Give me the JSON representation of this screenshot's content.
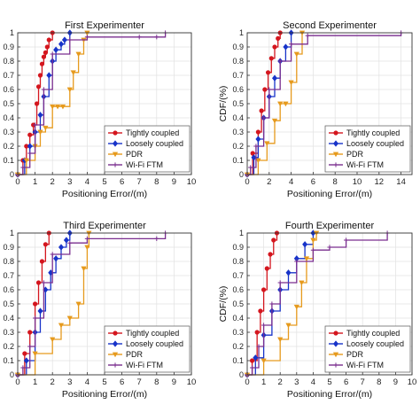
{
  "figure": {
    "colors": {
      "tightly": "#d4161e",
      "loosely": "#1733c9",
      "pdr": "#e69a1d",
      "wifi": "#7a2e8f",
      "axis": "#333333",
      "grid": "#e2e2e2"
    }
  },
  "chart_data": [
    {
      "type": "line",
      "title": "First Experimenter",
      "xlabel": "Positioning Error/(m)",
      "ylabel": "",
      "xlim": [
        0,
        10
      ],
      "ylim": [
        0,
        1
      ],
      "xticks": [
        "0",
        "1",
        "2",
        "3",
        "4",
        "5",
        "6",
        "7",
        "8",
        "9",
        "10"
      ],
      "yticks": [
        "0",
        "0.1",
        "0.2",
        "0.3",
        "0.4",
        "0.5",
        "0.6",
        "0.7",
        "0.8",
        "0.9",
        "1"
      ],
      "grid": true,
      "legend_position": "lower-right",
      "legend": [
        "Tightly coupled",
        "Loosely coupled",
        "PDR",
        "Wi-Fi FTM"
      ],
      "series": [
        {
          "name": "Tightly coupled",
          "color_key": "tightly",
          "marker": "circle",
          "x": [
            0,
            0.3,
            0.5,
            0.7,
            0.9,
            1.1,
            1.2,
            1.3,
            1.4,
            1.5,
            1.6,
            1.7,
            1.8,
            2.0
          ],
          "y": [
            0,
            0.1,
            0.2,
            0.28,
            0.35,
            0.5,
            0.62,
            0.7,
            0.78,
            0.83,
            0.86,
            0.9,
            0.95,
            1.0
          ]
        },
        {
          "name": "Loosely coupled",
          "color_key": "loosely",
          "marker": "diamond",
          "x": [
            0,
            0.4,
            0.7,
            1.0,
            1.3,
            1.5,
            1.8,
            2.0,
            2.2,
            2.5,
            2.7,
            3.0
          ],
          "y": [
            0,
            0.1,
            0.2,
            0.3,
            0.42,
            0.55,
            0.7,
            0.8,
            0.88,
            0.92,
            0.95,
            1.0
          ]
        },
        {
          "name": "PDR",
          "color_key": "pdr",
          "marker": "triangle",
          "x": [
            0,
            0.5,
            1.0,
            1.3,
            1.6,
            2.0,
            2.3,
            2.6,
            3.0,
            3.2,
            3.5,
            3.8,
            4.0
          ],
          "y": [
            0,
            0.1,
            0.2,
            0.3,
            0.33,
            0.48,
            0.48,
            0.48,
            0.6,
            0.72,
            0.85,
            0.95,
            1.0
          ]
        },
        {
          "name": "Wi-Fi FTM",
          "color_key": "wifi",
          "marker": "plus",
          "x": [
            0,
            0.3,
            0.7,
            1.0,
            1.5,
            2.0,
            3.0,
            4.0,
            7.0,
            8.0,
            8.5
          ],
          "y": [
            0,
            0.05,
            0.15,
            0.35,
            0.6,
            0.85,
            0.95,
            0.97,
            0.97,
            0.97,
            1.0
          ]
        }
      ]
    },
    {
      "type": "line",
      "title": "Second Experimenter",
      "xlabel": "Positioning Error/(m)",
      "ylabel": "CDF/(%)",
      "xlim": [
        0,
        15
      ],
      "ylim": [
        0,
        1
      ],
      "xticks": [
        "0",
        "2",
        "4",
        "6",
        "8",
        "10",
        "12",
        "14"
      ],
      "yticks": [
        "0",
        "0.1",
        "0.2",
        "0.3",
        "0.4",
        "0.5",
        "0.6",
        "0.7",
        "0.8",
        "0.9",
        "1"
      ],
      "grid": true,
      "legend_position": "lower-right",
      "legend": [
        "Tightly coupled",
        "Loosely coupled",
        "PDR",
        "Wi-Fi FTM"
      ],
      "series": [
        {
          "name": "Tightly coupled",
          "color_key": "tightly",
          "marker": "circle",
          "x": [
            0,
            0.5,
            1.0,
            1.3,
            1.6,
            1.9,
            2.2,
            2.5,
            2.8,
            3.0
          ],
          "y": [
            0,
            0.15,
            0.3,
            0.45,
            0.6,
            0.72,
            0.82,
            0.9,
            0.96,
            1.0
          ]
        },
        {
          "name": "Loosely coupled",
          "color_key": "loosely",
          "marker": "diamond",
          "x": [
            0,
            0.6,
            1.0,
            1.5,
            2.0,
            2.5,
            3.0,
            3.5,
            4.0
          ],
          "y": [
            0,
            0.12,
            0.25,
            0.4,
            0.55,
            0.68,
            0.8,
            0.9,
            1.0
          ]
        },
        {
          "name": "PDR",
          "color_key": "pdr",
          "marker": "triangle",
          "x": [
            0,
            1.0,
            1.8,
            2.5,
            3.0,
            3.5,
            4.0,
            4.5,
            5.0
          ],
          "y": [
            0,
            0.1,
            0.22,
            0.38,
            0.5,
            0.5,
            0.65,
            0.85,
            1.0
          ]
        },
        {
          "name": "Wi-Fi FTM",
          "color_key": "wifi",
          "marker": "plus",
          "x": [
            0,
            0.3,
            0.8,
            1.5,
            2.0,
            3.0,
            4.0,
            5.5,
            14.0
          ],
          "y": [
            0,
            0.05,
            0.2,
            0.4,
            0.6,
            0.8,
            0.92,
            0.98,
            1.0
          ]
        }
      ]
    },
    {
      "type": "line",
      "title": "Third Experimenter",
      "xlabel": "Positioning Error/(m)",
      "ylabel": "",
      "xlim": [
        0,
        10
      ],
      "ylim": [
        0,
        1
      ],
      "xticks": [
        "0",
        "1",
        "2",
        "3",
        "4",
        "5",
        "6",
        "7",
        "8",
        "9",
        "10"
      ],
      "yticks": [
        "0",
        "0.1",
        "0.2",
        "0.3",
        "0.4",
        "0.5",
        "0.6",
        "0.7",
        "0.8",
        "0.9",
        "1"
      ],
      "grid": true,
      "legend_position": "lower-right",
      "legend": [
        "Tightly coupled",
        "Loosely coupled",
        "PDR",
        "Wi-Fi FTM"
      ],
      "series": [
        {
          "name": "Tightly coupled",
          "color_key": "tightly",
          "marker": "circle",
          "x": [
            0,
            0.4,
            0.7,
            1.0,
            1.2,
            1.4,
            1.6,
            1.8
          ],
          "y": [
            0,
            0.15,
            0.3,
            0.5,
            0.65,
            0.8,
            0.92,
            1.0
          ]
        },
        {
          "name": "Loosely coupled",
          "color_key": "loosely",
          "marker": "diamond",
          "x": [
            0,
            0.5,
            1.0,
            1.3,
            1.6,
            1.9,
            2.2,
            2.5,
            2.8,
            3.0
          ],
          "y": [
            0,
            0.1,
            0.3,
            0.45,
            0.6,
            0.72,
            0.82,
            0.9,
            0.95,
            1.0
          ]
        },
        {
          "name": "PDR",
          "color_key": "pdr",
          "marker": "triangle",
          "x": [
            0,
            1.0,
            2.0,
            2.5,
            3.0,
            3.5,
            3.8,
            4.0,
            4.1
          ],
          "y": [
            0,
            0.15,
            0.25,
            0.35,
            0.4,
            0.5,
            0.75,
            0.9,
            1.0
          ]
        },
        {
          "name": "Wi-Fi FTM",
          "color_key": "wifi",
          "marker": "plus",
          "x": [
            0,
            0.3,
            0.7,
            1.0,
            1.5,
            2.0,
            3.0,
            4.0,
            8.0,
            8.5
          ],
          "y": [
            0,
            0.05,
            0.2,
            0.4,
            0.65,
            0.85,
            0.93,
            0.96,
            0.96,
            1.0
          ]
        }
      ]
    },
    {
      "type": "line",
      "title": "Fourth Experimenter",
      "xlabel": "Positioning Error/(m)",
      "ylabel": "CDF/(%)",
      "xlim": [
        0,
        10
      ],
      "ylim": [
        0,
        1
      ],
      "xticks": [
        "0",
        "1",
        "2",
        "3",
        "4",
        "5",
        "6",
        "7",
        "8",
        "9",
        "10"
      ],
      "yticks": [
        "0",
        "0.1",
        "0.2",
        "0.3",
        "0.4",
        "0.5",
        "0.6",
        "0.7",
        "0.8",
        "0.9",
        "1"
      ],
      "grid": true,
      "legend_position": "lower-right",
      "legend": [
        "Tightly coupled",
        "Loosely coupled",
        "PDR",
        "Wi-Fi FTM"
      ],
      "series": [
        {
          "name": "Tightly coupled",
          "color_key": "tightly",
          "marker": "circle",
          "x": [
            0,
            0.3,
            0.6,
            0.8,
            1.0,
            1.2,
            1.4,
            1.6,
            1.8
          ],
          "y": [
            0,
            0.1,
            0.3,
            0.45,
            0.6,
            0.75,
            0.85,
            0.95,
            1.0
          ]
        },
        {
          "name": "Loosely coupled",
          "color_key": "loosely",
          "marker": "diamond",
          "x": [
            0,
            0.5,
            1.0,
            1.5,
            2.0,
            2.5,
            3.0,
            3.5,
            4.0
          ],
          "y": [
            0,
            0.12,
            0.28,
            0.45,
            0.6,
            0.72,
            0.82,
            0.92,
            1.0
          ]
        },
        {
          "name": "PDR",
          "color_key": "pdr",
          "marker": "triangle",
          "x": [
            0,
            1.0,
            2.0,
            2.5,
            3.0,
            3.3,
            3.6,
            4.0,
            4.2
          ],
          "y": [
            0,
            0.1,
            0.25,
            0.35,
            0.48,
            0.65,
            0.82,
            0.95,
            1.0
          ]
        },
        {
          "name": "Wi-Fi FTM",
          "color_key": "wifi",
          "marker": "plus",
          "x": [
            0,
            0.3,
            0.7,
            1.0,
            1.5,
            2.0,
            3.0,
            4.0,
            5.0,
            6.0,
            8.5
          ],
          "y": [
            0,
            0.05,
            0.2,
            0.35,
            0.5,
            0.65,
            0.8,
            0.88,
            0.9,
            0.95,
            1.0
          ]
        }
      ]
    }
  ]
}
